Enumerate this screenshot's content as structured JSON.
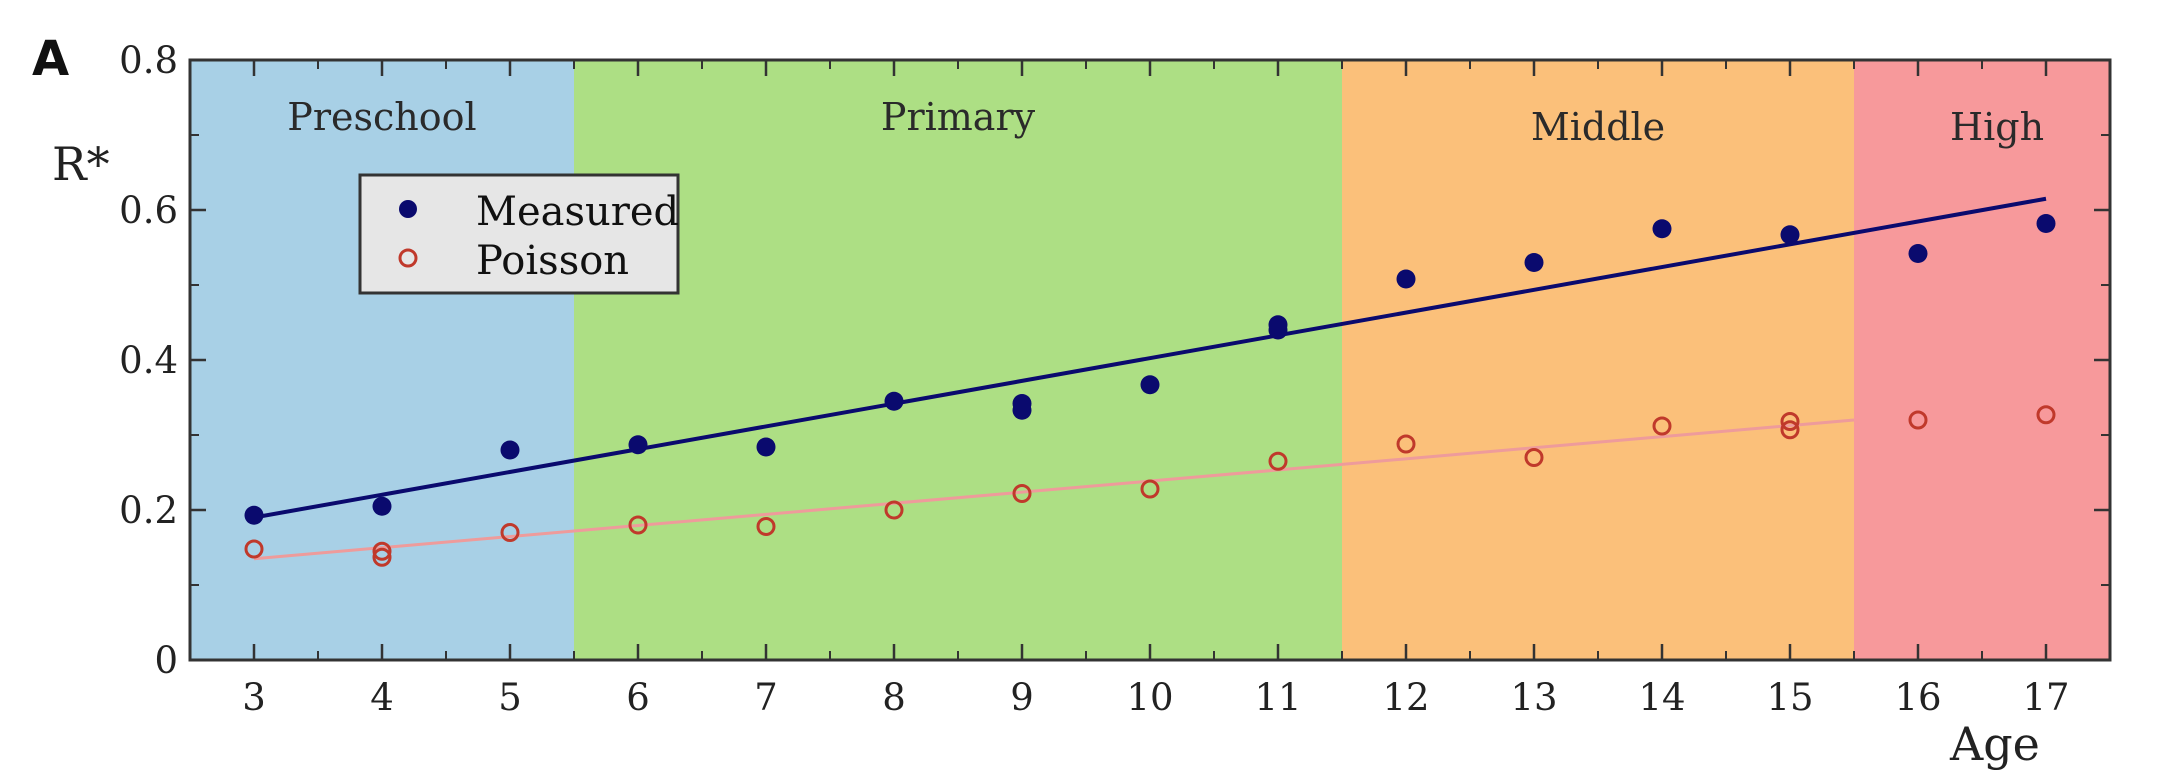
{
  "panel_label": "A",
  "colors": {
    "measured": "#0a0a6e",
    "poisson": "#c0392b",
    "poisson_fit": "#ee9b9b",
    "preschool": "#a8d0e6",
    "primary": "#addf84",
    "middle": "#fbc07a",
    "high": "#f7999b",
    "legend_bg": "#e6e6e6"
  },
  "chart_data": {
    "type": "scatter",
    "xlabel": "Age",
    "ylabel": "R*",
    "xlim": [
      2.5,
      17.5
    ],
    "ylim": [
      0,
      0.8
    ],
    "x_ticks": [
      "3",
      "4",
      "5",
      "6",
      "7",
      "8",
      "9",
      "10",
      "11",
      "12",
      "13",
      "14",
      "15",
      "16",
      "17"
    ],
    "y_ticks": [
      "0",
      "0.2",
      "0.4",
      "0.6",
      "0.8"
    ],
    "grid": false,
    "legend_position": "upper-left",
    "regions": [
      {
        "label": "Preschool",
        "x_start": 2.5,
        "x_end": 5.5,
        "color_key": "preschool"
      },
      {
        "label": "Primary",
        "x_start": 5.5,
        "x_end": 11.5,
        "color_key": "primary"
      },
      {
        "label": "Middle",
        "x_start": 11.5,
        "x_end": 15.5,
        "color_key": "middle"
      },
      {
        "label": "High",
        "x_start": 15.5,
        "x_end": 17.5,
        "color_key": "high"
      }
    ],
    "series": [
      {
        "name": "Measured",
        "marker": "filled-circle",
        "color_key": "measured",
        "points": [
          [
            3,
            0.193
          ],
          [
            4,
            0.205
          ],
          [
            5,
            0.28
          ],
          [
            6,
            0.287
          ],
          [
            7,
            0.284
          ],
          [
            8,
            0.345
          ],
          [
            9,
            0.333
          ],
          [
            9,
            0.342
          ],
          [
            10,
            0.367
          ],
          [
            11,
            0.44
          ],
          [
            11,
            0.447
          ],
          [
            12,
            0.508
          ],
          [
            13,
            0.53
          ],
          [
            14,
            0.575
          ],
          [
            15,
            0.567
          ],
          [
            16,
            0.542
          ],
          [
            17,
            0.582
          ]
        ],
        "fit": [
          [
            3,
            0.19
          ],
          [
            17,
            0.615
          ]
        ]
      },
      {
        "name": "Poisson",
        "marker": "open-circle",
        "color_key": "poisson",
        "points": [
          [
            3,
            0.148
          ],
          [
            4,
            0.137
          ],
          [
            4,
            0.145
          ],
          [
            5,
            0.17
          ],
          [
            6,
            0.18
          ],
          [
            7,
            0.178
          ],
          [
            8,
            0.2
          ],
          [
            9,
            0.222
          ],
          [
            10,
            0.228
          ],
          [
            11,
            0.265
          ],
          [
            12,
            0.288
          ],
          [
            13,
            0.27
          ],
          [
            14,
            0.312
          ],
          [
            15,
            0.307
          ],
          [
            15,
            0.318
          ],
          [
            16,
            0.32
          ],
          [
            17,
            0.327
          ]
        ],
        "fit": [
          [
            3,
            0.135
          ],
          [
            15.5,
            0.32
          ]
        ]
      }
    ]
  }
}
